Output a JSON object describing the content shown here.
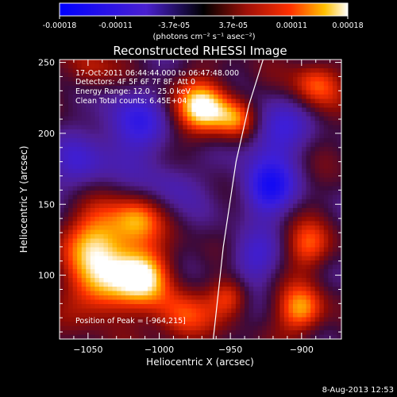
{
  "chart_data": {
    "type": "heatmap",
    "title": "Reconstructed RHESSI Image",
    "xlabel": "Heliocentric X (arcsec)",
    "ylabel": "Heliocentric Y (arcsec)",
    "xlim": [
      -1070,
      -872
    ],
    "ylim": [
      55,
      252
    ],
    "x_ticks": [
      -1050,
      -1000,
      -950,
      -900
    ],
    "y_ticks": [
      100,
      150,
      200,
      250
    ],
    "colorbar": {
      "min": -0.00018,
      "max": 0.00018,
      "ticks": [
        -0.00018,
        -0.00011,
        -3.7e-05,
        3.7e-05,
        0.00011,
        0.00018
      ],
      "tick_labels": [
        "-0.00018",
        "-0.00011",
        "-3.7e-05",
        "3.7e-05",
        "0.00011",
        "0.00018"
      ],
      "unit_label": "(photons cm⁻² s⁻¹ asec⁻²)"
    },
    "info_lines": [
      "17-Oct-2011 06:44:44.000 to 06:47:48.000",
      "Detectors: 4F 5F 6F 7F 8F, Att 0",
      "Energy Range: 12.0 - 25.0 keV",
      "Clean    Total counts: 6.45E+04"
    ],
    "peak_label": "Position of Peak = [-964,215]",
    "peak": [
      -964,
      215
    ],
    "limb_line": [
      [
        -962,
        55
      ],
      [
        -955,
        120
      ],
      [
        -946,
        180
      ],
      [
        -937,
        220
      ],
      [
        -927,
        252
      ]
    ],
    "sources": [
      {
        "x": -968,
        "y": 218,
        "amp": 1.0,
        "sigma": 14
      },
      {
        "x": -945,
        "y": 210,
        "amp": 0.6,
        "sigma": 10
      },
      {
        "x": -1040,
        "y": 125,
        "amp": 0.85,
        "sigma": 18
      },
      {
        "x": -1010,
        "y": 100,
        "amp": 0.8,
        "sigma": 14
      },
      {
        "x": -1040,
        "y": 90,
        "amp": 0.75,
        "sigma": 16
      },
      {
        "x": -985,
        "y": 70,
        "amp": 0.6,
        "sigma": 14
      },
      {
        "x": -1015,
        "y": 140,
        "amp": 0.5,
        "sigma": 12
      },
      {
        "x": -950,
        "y": 85,
        "amp": 0.55,
        "sigma": 10
      },
      {
        "x": -900,
        "y": 75,
        "amp": 0.75,
        "sigma": 12
      },
      {
        "x": -895,
        "y": 120,
        "amp": 0.55,
        "sigma": 12
      },
      {
        "x": -890,
        "y": 235,
        "amp": 0.6,
        "sigma": 12
      },
      {
        "x": -1050,
        "y": 245,
        "amp": 0.4,
        "sigma": 12
      },
      {
        "x": -920,
        "y": 200,
        "amp": -0.55,
        "sigma": 16
      },
      {
        "x": -925,
        "y": 160,
        "amp": -0.75,
        "sigma": 14
      },
      {
        "x": -1020,
        "y": 205,
        "amp": -0.55,
        "sigma": 18
      },
      {
        "x": -1055,
        "y": 175,
        "amp": -0.4,
        "sigma": 16
      },
      {
        "x": -990,
        "y": 165,
        "amp": -0.35,
        "sigma": 14
      },
      {
        "x": -935,
        "y": 110,
        "amp": -0.45,
        "sigma": 14
      }
    ],
    "grid": false
  },
  "timestamp": "8-Aug-2013 12:53"
}
